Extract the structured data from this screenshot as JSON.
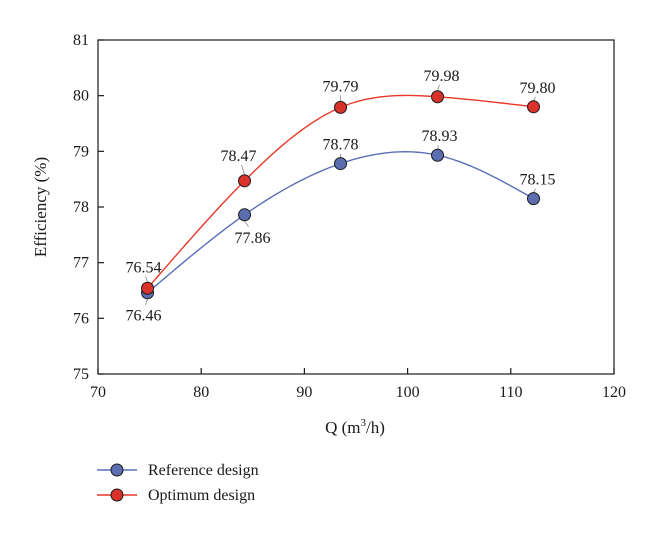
{
  "chart_data": {
    "type": "line",
    "xlabel": "Q (m",
    "xlabel_sup": "3",
    "xlabel_end": "/h)",
    "ylabel": "Efficiency (%)",
    "xlim": [
      70,
      120
    ],
    "ylim": [
      75,
      81
    ],
    "xticks": [
      70,
      80,
      90,
      100,
      110,
      120
    ],
    "yticks": [
      75,
      76,
      77,
      78,
      79,
      80,
      81
    ],
    "grid": false,
    "legend_position": "bottom-left",
    "series": [
      {
        "name": "Reference design",
        "color": "#5a6fb8",
        "marker_fill": "#5b6fb0",
        "x": [
          74.8,
          84.2,
          93.5,
          102.9,
          112.2
        ],
        "values": [
          76.46,
          77.86,
          78.78,
          78.93,
          78.15
        ],
        "labels": [
          "76.46",
          "77.86",
          "78.78",
          "78.93",
          "78.15"
        ]
      },
      {
        "name": "Optimum design",
        "color": "#e8382a",
        "marker_fill": "#d8322a",
        "x": [
          74.8,
          84.2,
          93.5,
          102.9,
          112.2
        ],
        "values": [
          76.54,
          78.47,
          79.79,
          79.98,
          79.8
        ],
        "labels": [
          "76.54",
          "78.47",
          "79.79",
          "79.98",
          "79.80"
        ]
      }
    ]
  }
}
